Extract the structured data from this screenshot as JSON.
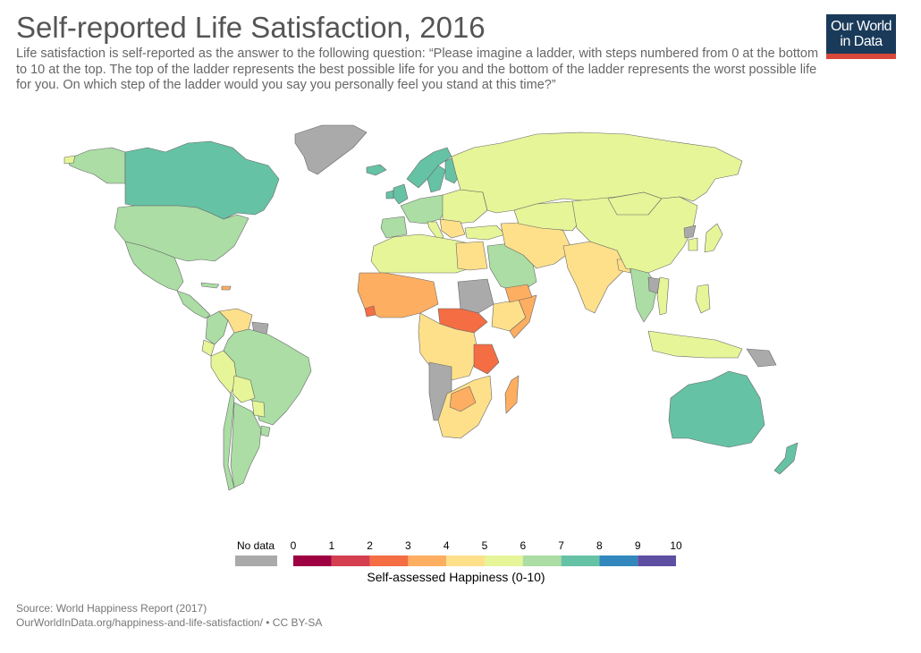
{
  "header": {
    "title": "Self-reported Life Satisfaction, 2016",
    "subtitle": "Life satisfaction is self-reported as the answer to the following question: “Please imagine a ladder, with steps numbered from 0 at the bottom to 10 at the top. The top of the ladder represents the best possible life for you and the bottom of the ladder represents the worst possible life for you. On which step of the ladder would you say you personally feel you stand at this time?”",
    "logo_line1": "Our World",
    "logo_line2": "in Data"
  },
  "legend": {
    "title": "Self-assessed Happiness (0-10)",
    "no_data_label": "No data",
    "ticks": [
      "0",
      "1",
      "2",
      "3",
      "4",
      "5",
      "6",
      "7",
      "8",
      "9",
      "10"
    ],
    "colors": [
      "#9e0142",
      "#d53e4f",
      "#f46d43",
      "#fdae61",
      "#fee08b",
      "#e6f598",
      "#abdda4",
      "#66c2a5",
      "#3288bd",
      "#5e4fa2"
    ],
    "no_data_color": "#aaaaaa"
  },
  "colors": {
    "no_data": "#aaaaaa",
    "band_2_3": "#f46d43",
    "band_3_4": "#fdae61",
    "band_4_5": "#fee08b",
    "band_5_6": "#e6f598",
    "band_6_7": "#abdda4",
    "band_7_8": "#66c2a5"
  },
  "source": {
    "line1": "Source: World Happiness Report (2017)",
    "line2": "OurWorldInData.org/happiness-and-life-satisfaction/ • CC BY-SA"
  }
}
